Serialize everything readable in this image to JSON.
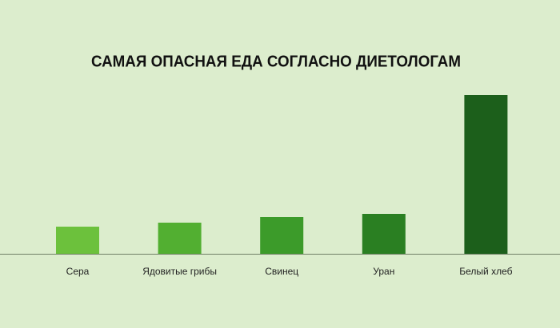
{
  "chart_data": {
    "type": "bar",
    "title": "САМАЯ ОПАСНАЯ ЕДА СОГЛАСНО ДИЕТОЛОГАМ",
    "categories": [
      "Сера",
      "Ядовитые грибы",
      "Свинец",
      "Уран",
      "Белый хлеб"
    ],
    "values": [
      34,
      39,
      46,
      50,
      199
    ],
    "colors": [
      "#6cc13c",
      "#52af31",
      "#3c9b2a",
      "#2a7f22",
      "#1c5f1b"
    ]
  }
}
